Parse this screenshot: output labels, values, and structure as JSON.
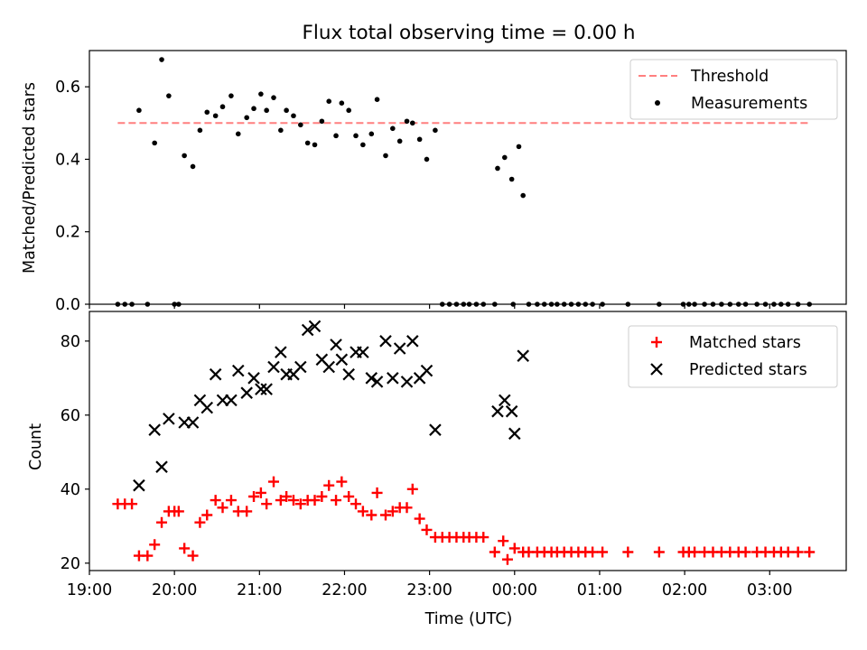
{
  "chart_data": [
    {
      "type": "scatter",
      "title": "Flux total observing time = 0.00 h",
      "xlabel": "",
      "ylabel": "Matched/Predicted stars",
      "xlim": [
        "19:00",
        "03:54"
      ],
      "ylim": [
        0,
        0.7
      ],
      "yticks": [
        "0.0",
        "0.2",
        "0.4",
        "0.6"
      ],
      "grid": false,
      "legend_position": "top-right",
      "threshold": {
        "name": "Threshold",
        "value": 0.5,
        "x_start": "19:20",
        "x_end": "03:28",
        "color": "#ff7f7f"
      },
      "series": [
        {
          "name": "Measurements",
          "color": "#000000",
          "points": [
            [
              "19:20",
              0.0
            ],
            [
              "19:25",
              0.0
            ],
            [
              "19:30",
              0.0
            ],
            [
              "19:35",
              0.535
            ],
            [
              "19:41",
              0.0
            ],
            [
              "19:46",
              0.445
            ],
            [
              "19:51",
              0.675
            ],
            [
              "19:56",
              0.575
            ],
            [
              "20:00",
              0.0
            ],
            [
              "20:03",
              0.0
            ],
            [
              "20:07",
              0.41
            ],
            [
              "20:13",
              0.38
            ],
            [
              "20:18",
              0.48
            ],
            [
              "20:23",
              0.53
            ],
            [
              "20:29",
              0.52
            ],
            [
              "20:34",
              0.545
            ],
            [
              "20:40",
              0.575
            ],
            [
              "20:45",
              0.47
            ],
            [
              "20:51",
              0.515
            ],
            [
              "20:56",
              0.54
            ],
            [
              "21:01",
              0.58
            ],
            [
              "21:05",
              0.535
            ],
            [
              "21:10",
              0.57
            ],
            [
              "21:15",
              0.48
            ],
            [
              "21:19",
              0.535
            ],
            [
              "21:24",
              0.52
            ],
            [
              "21:29",
              0.495
            ],
            [
              "21:34",
              0.445
            ],
            [
              "21:39",
              0.44
            ],
            [
              "21:44",
              0.505
            ],
            [
              "21:49",
              0.56
            ],
            [
              "21:54",
              0.465
            ],
            [
              "21:58",
              0.555
            ],
            [
              "22:03",
              0.535
            ],
            [
              "22:08",
              0.465
            ],
            [
              "22:13",
              0.44
            ],
            [
              "22:19",
              0.47
            ],
            [
              "22:23",
              0.565
            ],
            [
              "22:29",
              0.41
            ],
            [
              "22:34",
              0.485
            ],
            [
              "22:39",
              0.45
            ],
            [
              "22:44",
              0.505
            ],
            [
              "22:48",
              0.5
            ],
            [
              "22:53",
              0.455
            ],
            [
              "22:58",
              0.4
            ],
            [
              "23:04",
              0.48
            ],
            [
              "23:09",
              0.0
            ],
            [
              "23:14",
              0.0
            ],
            [
              "23:19",
              0.0
            ],
            [
              "23:24",
              0.0
            ],
            [
              "23:28",
              0.0
            ],
            [
              "23:33",
              0.0
            ],
            [
              "23:38",
              0.0
            ],
            [
              "23:46",
              0.0
            ],
            [
              "23:48",
              0.375
            ],
            [
              "23:53",
              0.405
            ],
            [
              "23:58",
              0.345
            ],
            [
              "23:59",
              0.0
            ],
            [
              "00:03",
              0.435
            ],
            [
              "00:06",
              0.3
            ],
            [
              "00:10",
              0.0
            ],
            [
              "00:16",
              0.0
            ],
            [
              "00:21",
              0.0
            ],
            [
              "00:26",
              0.0
            ],
            [
              "00:30",
              0.0
            ],
            [
              "00:35",
              0.0
            ],
            [
              "00:40",
              0.0
            ],
            [
              "00:45",
              0.0
            ],
            [
              "00:50",
              0.0
            ],
            [
              "00:55",
              0.0
            ],
            [
              "01:02",
              0.0
            ],
            [
              "01:20",
              0.0
            ],
            [
              "01:42",
              0.0
            ],
            [
              "01:59",
              0.0
            ],
            [
              "02:03",
              0.0
            ],
            [
              "02:07",
              0.0
            ],
            [
              "02:14",
              0.0
            ],
            [
              "02:20",
              0.0
            ],
            [
              "02:26",
              0.0
            ],
            [
              "02:32",
              0.0
            ],
            [
              "02:38",
              0.0
            ],
            [
              "02:43",
              0.0
            ],
            [
              "02:51",
              0.0
            ],
            [
              "02:57",
              0.0
            ],
            [
              "03:03",
              0.0
            ],
            [
              "03:08",
              0.0
            ],
            [
              "03:13",
              0.0
            ],
            [
              "03:20",
              0.0
            ],
            [
              "03:28",
              0.0
            ]
          ]
        }
      ]
    },
    {
      "type": "scatter",
      "title": "",
      "xlabel": "Time (UTC)",
      "ylabel": "Count",
      "xlim": [
        "19:00",
        "03:54"
      ],
      "ylim": [
        18,
        88
      ],
      "xticks": [
        "19:00",
        "20:00",
        "21:00",
        "22:00",
        "23:00",
        "00:00",
        "01:00",
        "02:00",
        "03:00"
      ],
      "yticks": [
        "20",
        "40",
        "60",
        "80"
      ],
      "grid": false,
      "legend_position": "top-right",
      "series": [
        {
          "name": "Matched stars",
          "marker": "plus",
          "color": "#ff0000",
          "points": [
            [
              "19:20",
              36
            ],
            [
              "19:25",
              36
            ],
            [
              "19:30",
              36
            ],
            [
              "19:35",
              22
            ],
            [
              "19:41",
              22
            ],
            [
              "19:46",
              25
            ],
            [
              "19:51",
              31
            ],
            [
              "19:56",
              34
            ],
            [
              "20:00",
              34
            ],
            [
              "20:03",
              34
            ],
            [
              "20:07",
              24
            ],
            [
              "20:13",
              22
            ],
            [
              "20:18",
              31
            ],
            [
              "20:23",
              33
            ],
            [
              "20:29",
              37
            ],
            [
              "20:34",
              35
            ],
            [
              "20:40",
              37
            ],
            [
              "20:45",
              34
            ],
            [
              "20:51",
              34
            ],
            [
              "20:56",
              38
            ],
            [
              "21:01",
              39
            ],
            [
              "21:05",
              36
            ],
            [
              "21:10",
              42
            ],
            [
              "21:15",
              37
            ],
            [
              "21:19",
              38
            ],
            [
              "21:24",
              37
            ],
            [
              "21:29",
              36
            ],
            [
              "21:34",
              37
            ],
            [
              "21:39",
              37
            ],
            [
              "21:44",
              38
            ],
            [
              "21:49",
              41
            ],
            [
              "21:54",
              37
            ],
            [
              "21:58",
              42
            ],
            [
              "22:03",
              38
            ],
            [
              "22:08",
              36
            ],
            [
              "22:13",
              34
            ],
            [
              "22:19",
              33
            ],
            [
              "22:23",
              39
            ],
            [
              "22:29",
              33
            ],
            [
              "22:34",
              34
            ],
            [
              "22:39",
              35
            ],
            [
              "22:44",
              35
            ],
            [
              "22:48",
              40
            ],
            [
              "22:53",
              32
            ],
            [
              "22:58",
              29
            ],
            [
              "23:04",
              27
            ],
            [
              "23:09",
              27
            ],
            [
              "23:14",
              27
            ],
            [
              "23:19",
              27
            ],
            [
              "23:24",
              27
            ],
            [
              "23:28",
              27
            ],
            [
              "23:33",
              27
            ],
            [
              "23:38",
              27
            ],
            [
              "23:46",
              23
            ],
            [
              "23:52",
              26
            ],
            [
              "23:55",
              21
            ],
            [
              "00:00",
              24
            ],
            [
              "00:06",
              23
            ],
            [
              "00:10",
              23
            ],
            [
              "00:16",
              23
            ],
            [
              "00:21",
              23
            ],
            [
              "00:26",
              23
            ],
            [
              "00:30",
              23
            ],
            [
              "00:35",
              23
            ],
            [
              "00:40",
              23
            ],
            [
              "00:45",
              23
            ],
            [
              "00:50",
              23
            ],
            [
              "00:55",
              23
            ],
            [
              "01:02",
              23
            ],
            [
              "01:20",
              23
            ],
            [
              "01:42",
              23
            ],
            [
              "01:59",
              23
            ],
            [
              "02:03",
              23
            ],
            [
              "02:07",
              23
            ],
            [
              "02:14",
              23
            ],
            [
              "02:20",
              23
            ],
            [
              "02:26",
              23
            ],
            [
              "02:32",
              23
            ],
            [
              "02:38",
              23
            ],
            [
              "02:43",
              23
            ],
            [
              "02:51",
              23
            ],
            [
              "02:57",
              23
            ],
            [
              "03:03",
              23
            ],
            [
              "03:08",
              23
            ],
            [
              "03:13",
              23
            ],
            [
              "03:20",
              23
            ],
            [
              "03:28",
              23
            ]
          ]
        },
        {
          "name": "Predicted stars",
          "marker": "x",
          "color": "#000000",
          "points": [
            [
              "19:35",
              41
            ],
            [
              "19:46",
              56
            ],
            [
              "19:51",
              46
            ],
            [
              "19:56",
              59
            ],
            [
              "20:07",
              58
            ],
            [
              "20:13",
              58
            ],
            [
              "20:18",
              64
            ],
            [
              "20:23",
              62
            ],
            [
              "20:29",
              71
            ],
            [
              "20:34",
              64
            ],
            [
              "20:40",
              64
            ],
            [
              "20:45",
              72
            ],
            [
              "20:51",
              66
            ],
            [
              "20:56",
              70
            ],
            [
              "21:01",
              67
            ],
            [
              "21:05",
              67
            ],
            [
              "21:10",
              73
            ],
            [
              "21:15",
              77
            ],
            [
              "21:19",
              71
            ],
            [
              "21:24",
              71
            ],
            [
              "21:29",
              73
            ],
            [
              "21:34",
              83
            ],
            [
              "21:39",
              84
            ],
            [
              "21:44",
              75
            ],
            [
              "21:49",
              73
            ],
            [
              "21:54",
              79
            ],
            [
              "21:58",
              75
            ],
            [
              "22:03",
              71
            ],
            [
              "22:08",
              77
            ],
            [
              "22:13",
              77
            ],
            [
              "22:19",
              70
            ],
            [
              "22:23",
              69
            ],
            [
              "22:29",
              80
            ],
            [
              "22:34",
              70
            ],
            [
              "22:39",
              78
            ],
            [
              "22:44",
              69
            ],
            [
              "22:48",
              80
            ],
            [
              "22:53",
              70
            ],
            [
              "22:58",
              72
            ],
            [
              "23:04",
              56
            ],
            [
              "23:48",
              61
            ],
            [
              "23:53",
              64
            ],
            [
              "23:58",
              61
            ],
            [
              "00:00",
              55
            ],
            [
              "00:06",
              76
            ]
          ]
        }
      ]
    }
  ]
}
